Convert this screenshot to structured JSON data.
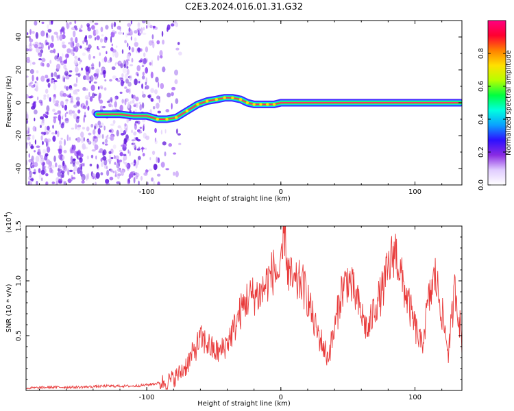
{
  "title": "C2E3.2024.016.01.31.G32",
  "colors": {
    "snr_line": "#e83a3a",
    "spectrum_scatter": "#7b2cf0",
    "ridge": "#ff2a6a",
    "colormap": [
      "#ffffff",
      "#e0ccff",
      "#8a2be2",
      "#2d10ff",
      "#0aa0ff",
      "#00ffe0",
      "#00ff40",
      "#b6ff00",
      "#ffe000",
      "#ff8000",
      "#ff0030",
      "#ff0080"
    ]
  },
  "chart_data": [
    {
      "type": "heatmap",
      "xlabel": "Height of straight line (km)",
      "ylabel": "Frequency (Hz)",
      "xlim": [
        -190,
        135
      ],
      "ylim": [
        -50,
        50
      ],
      "x_ticks": [
        -100,
        0,
        100
      ],
      "y_ticks": [
        -40,
        -20,
        0,
        20,
        40
      ],
      "colorbar": {
        "label": "Normalized spectral amplitude",
        "range": [
          0,
          1
        ],
        "ticks": [
          "0.0",
          "0.2",
          "0.4",
          "0.6",
          "0.8"
        ]
      },
      "ridge": {
        "x": [
          -137,
          -130,
          -120,
          -110,
          -100,
          -92,
          -85,
          -78,
          -70,
          -62,
          -55,
          -48,
          -42,
          -36,
          -30,
          -25,
          -20,
          -15,
          -10,
          -5,
          0,
          5,
          10,
          20,
          40,
          60,
          80,
          100,
          120,
          134
        ],
        "y": [
          -7,
          -7,
          -7,
          -8,
          -8,
          -10,
          -10,
          -9,
          -5,
          -1,
          1,
          2,
          3,
          3,
          2,
          0,
          -1,
          -1,
          -1,
          -1,
          0,
          0,
          0,
          0,
          0,
          0,
          0,
          0,
          0,
          0
        ]
      },
      "noise_region_x": [
        -190,
        -75
      ]
    },
    {
      "type": "line",
      "xlabel": "Height of straight line (km)",
      "ylabel": "SNR (10 * v/v)",
      "y_multiplier_label": "(x10",
      "y_multiplier_exp": "4",
      "xlim": [
        -190,
        135
      ],
      "ylim": [
        0,
        1.5
      ],
      "x_ticks": [
        -100,
        0,
        100
      ],
      "y_ticks": [
        0.5,
        1.0,
        1.5
      ],
      "series": [
        {
          "x": [
            -190,
            -170,
            -150,
            -130,
            -110,
            -100,
            -90,
            -85,
            -80,
            -75,
            -70,
            -65,
            -60,
            -55,
            -50,
            -45,
            -40,
            -35,
            -30,
            -25,
            -20,
            -15,
            -10,
            -5,
            0,
            3,
            5,
            10,
            15,
            20,
            25,
            30,
            35,
            40,
            45,
            50,
            55,
            60,
            65,
            70,
            75,
            80,
            85,
            90,
            95,
            100,
            105,
            110,
            115,
            120,
            125,
            130,
            135
          ],
          "values": [
            0.02,
            0.03,
            0.03,
            0.04,
            0.04,
            0.05,
            0.07,
            0.08,
            0.11,
            0.16,
            0.24,
            0.35,
            0.47,
            0.43,
            0.36,
            0.35,
            0.44,
            0.56,
            0.72,
            0.84,
            0.87,
            0.88,
            1.0,
            1.1,
            1.04,
            1.5,
            1.1,
            0.95,
            1.0,
            0.85,
            0.6,
            0.45,
            0.3,
            0.55,
            0.9,
            1.02,
            0.88,
            0.7,
            0.53,
            0.77,
            0.88,
            1.1,
            1.3,
            1.02,
            0.8,
            0.58,
            0.4,
            0.8,
            1.05,
            0.72,
            0.35,
            0.95,
            0.45
          ]
        }
      ]
    }
  ]
}
